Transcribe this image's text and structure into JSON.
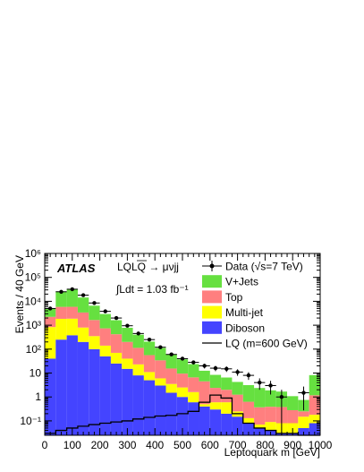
{
  "chart_data": {
    "type": "bar",
    "subtype": "stacked-histogram",
    "title": "",
    "xlabel": "Leptoquark m [GeV]",
    "ylabel": "Events / 40 GeV",
    "xlim": [
      0,
      1000
    ],
    "ylim": [
      0.025,
      1000000
    ],
    "yscale": "log",
    "grid": false,
    "legend_position": "top-right",
    "experiment_label": "ATLAS",
    "process_label": "LQLQ → μνjj",
    "lumi_label": "∫Ldt = 1.03 fb⁻¹",
    "x_ticks": [
      "0",
      "100",
      "200",
      "300",
      "400",
      "500",
      "600",
      "700",
      "800",
      "900",
      "1000"
    ],
    "y_ticks": [
      "10⁻¹",
      "1",
      "10",
      "10²",
      "10³",
      "10⁴",
      "10⁵",
      "10⁶"
    ],
    "bin_edges": [
      0,
      40,
      80,
      120,
      160,
      200,
      240,
      280,
      320,
      360,
      400,
      440,
      480,
      520,
      560,
      600,
      640,
      680,
      720,
      760,
      800,
      840,
      880,
      920,
      960,
      1000
    ],
    "stack_order": [
      "Diboson",
      "Multi-jet",
      "Top",
      "V+Jets"
    ],
    "series": [
      {
        "name": "Diboson",
        "color": "#4444ff",
        "values": [
          40,
          250,
          380,
          200,
          100,
          50,
          25,
          15,
          8,
          5,
          3,
          1.5,
          1,
          0.6,
          0.4,
          0.3,
          0.2,
          0.15,
          0.08,
          0.05,
          0.04,
          0.03,
          0.03,
          0.05,
          0.08
        ]
      },
      {
        "name": "Multi-jet",
        "color": "#ffff00",
        "values": [
          800,
          1600,
          1500,
          600,
          250,
          90,
          45,
          25,
          15,
          6,
          3,
          2,
          1.5,
          1,
          0.1,
          0.3,
          0.4,
          0.1,
          0.05,
          0.02,
          0.05,
          0.05,
          0.05,
          0.1,
          0.1
        ]
      },
      {
        "name": "Top",
        "color": "#ff7f7f",
        "values": [
          1400,
          4000,
          4000,
          2600,
          1300,
          600,
          350,
          160,
          90,
          45,
          28,
          12,
          7,
          5,
          4,
          1.8,
          1.4,
          1.0,
          0.5,
          0.3,
          0.3,
          0.3,
          0.2,
          0.1,
          1.0
        ]
      },
      {
        "name": "V+Jets",
        "color": "#66e040",
        "values": [
          2800,
          20000,
          26000,
          11000,
          4900,
          2200,
          1200,
          580,
          290,
          150,
          78,
          46,
          28,
          17,
          8,
          6,
          4.5,
          3,
          2.5,
          2,
          1.5,
          1.3,
          0.8,
          0.5,
          7.0
        ]
      }
    ],
    "data": {
      "name": "Data (√s=7 TeV)",
      "values": [
        5000,
        25000,
        32000,
        18000,
        8500,
        3800,
        2000,
        950,
        450,
        250,
        120,
        60,
        40,
        28,
        20,
        16,
        15,
        11,
        8,
        4,
        3,
        1,
        0,
        1.5,
        0
      ]
    },
    "signal": {
      "name": "LQ (m=600 GeV)",
      "color": "#000000",
      "values": [
        0.03,
        0.04,
        0.05,
        0.06,
        0.07,
        0.08,
        0.09,
        0.1,
        0.12,
        0.14,
        0.16,
        0.17,
        0.2,
        0.25,
        0.6,
        1.2,
        0.9,
        0.2,
        0.08,
        0.05,
        0.04,
        0.03,
        0.03,
        0.02,
        0.02
      ]
    },
    "legend": [
      "Data (√s=7 TeV)",
      "V+Jets",
      "Top",
      "Multi-jet",
      "Diboson",
      "LQ (m=600 GeV)"
    ]
  }
}
